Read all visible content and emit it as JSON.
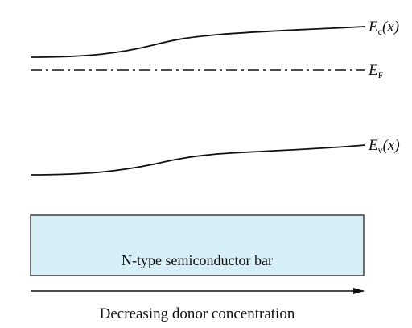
{
  "bands": {
    "conduction": {
      "symbol": "E",
      "subscript": "c",
      "argument": "(x)"
    },
    "fermi": {
      "symbol": "E",
      "subscript": "F"
    },
    "valence": {
      "symbol": "E",
      "subscript": "v",
      "argument": "(x)"
    }
  },
  "bar": {
    "label": "N-type semiconductor bar",
    "fill_color": "#d6eef5",
    "stroke_color": "#222222"
  },
  "arrow": {
    "label": "Decreasing donor concentration"
  },
  "colors": {
    "line": "#111111"
  }
}
